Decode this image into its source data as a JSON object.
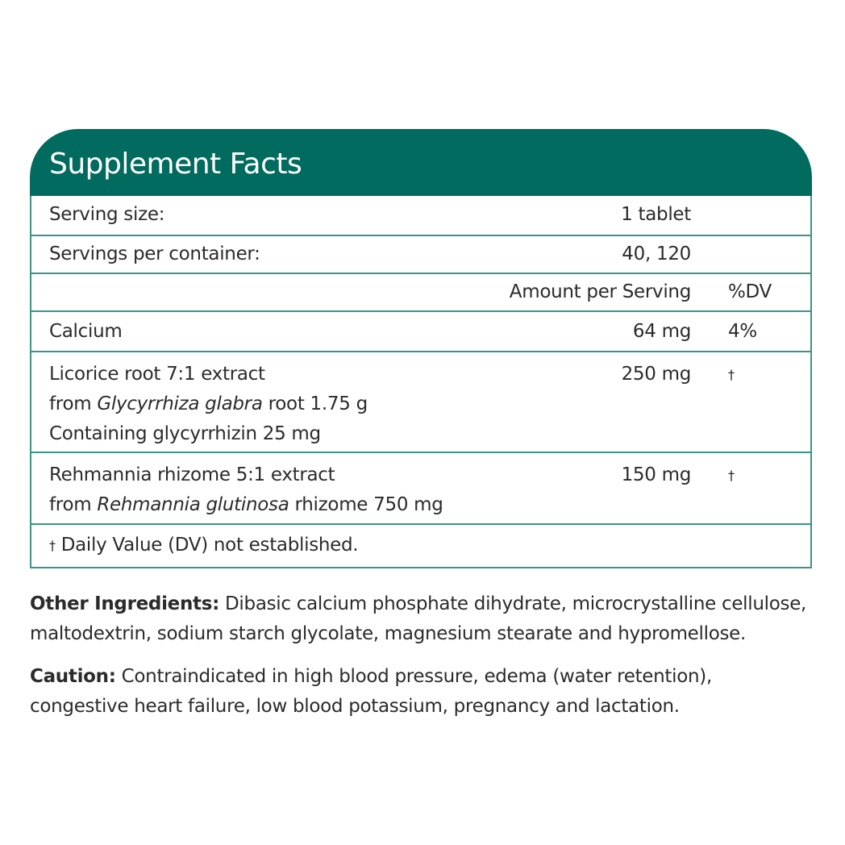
{
  "title": "Supplement Facts",
  "serving_size": {
    "label": "Serving size:",
    "value": "1 tablet"
  },
  "servings_per_container": {
    "label": "Servings per container:",
    "value": "40, 120"
  },
  "columns": {
    "amount": "Amount per Serving",
    "dv": "%DV"
  },
  "ingredients": [
    {
      "name": "Calcium",
      "amount": "64 mg",
      "dv": "4%"
    },
    {
      "name": "Licorice root 7:1 extract",
      "line2_pre": "from ",
      "line2_italic": "Glycyrrhiza glabra",
      "line2_post": " root 1.75 g",
      "line3": "Containing glycyrrhizin 25 mg",
      "amount": "250 mg",
      "dv": "†"
    },
    {
      "name": "Rehmannia rhizome 5:1 extract",
      "line2_pre": "from ",
      "line2_italic": "Rehmannia glutinosa",
      "line2_post": " rhizome 750 mg",
      "amount": "150 mg",
      "dv": "†"
    }
  ],
  "footnote": {
    "dagger": "†",
    "text": " Daily Value (DV) not established."
  },
  "other_ingredients": {
    "label": "Other Ingredients:",
    "text": " Dibasic calcium phosphate dihydrate, microcrystalline cellulose, maltodextrin, sodium starch glycolate, magnesium stearate and hypromellose."
  },
  "caution": {
    "label": "Caution:",
    "text": " Contraindicated in high blood pressure, edema (water retention), congestive heart failure, low blood potassium, pregnancy and lactation."
  },
  "colors": {
    "header": "#006b5e",
    "border": "#3a9488"
  }
}
